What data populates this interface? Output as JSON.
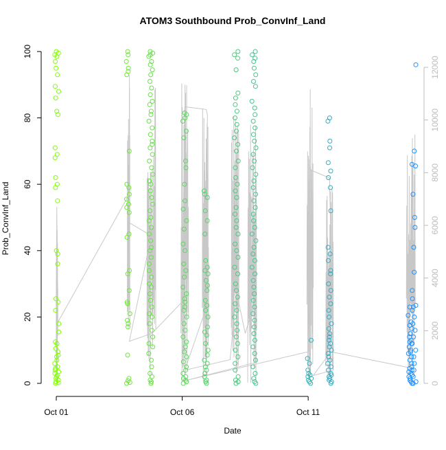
{
  "chart_data": {
    "type": "scatter",
    "title": "ATOM3 Southbound Prob_ConvInf_Land",
    "xlabel": "Date",
    "ylabel": "Prob_ConvInf_Land",
    "x_unit": "day of October (fractional)",
    "xlim": [
      0.4,
      15.6
    ],
    "ylim": [
      0,
      100
    ],
    "y2lim": [
      0,
      12000
    ],
    "x_ticks": [
      {
        "value": 1,
        "label": "Oct 01"
      },
      {
        "value": 6,
        "label": "Oct 06"
      },
      {
        "value": 11,
        "label": "Oct 11"
      }
    ],
    "y_ticks": [
      0,
      20,
      40,
      60,
      80,
      100
    ],
    "y2_ticks": [
      0,
      2000,
      4000,
      6000,
      8000,
      10000,
      12000
    ],
    "colors": {
      "axis": "#000000",
      "right_axis": "#bdbdbd",
      "line": "#c8c8c8",
      "gradient_start": "#7fff00",
      "gradient_end": "#1e90ff"
    },
    "series": [
      {
        "type": "points",
        "x": 1.02,
        "values": [
          100,
          99.5,
          99,
          98.5,
          97,
          95,
          93,
          89.5,
          88,
          86,
          82,
          81,
          71,
          69,
          68,
          62,
          60,
          59,
          55,
          40,
          39,
          36,
          25.5,
          24.5,
          22,
          18,
          15.5,
          12.5,
          12,
          10.5,
          9.5,
          8.5,
          8,
          7,
          6,
          5,
          4.5,
          4,
          3.5,
          3,
          2.5,
          2,
          1.5,
          1,
          0.5,
          0.2,
          0
        ]
      },
      {
        "type": "points",
        "x": 3.85,
        "values": [
          100,
          99,
          97,
          95,
          94,
          93,
          70,
          60,
          59,
          57,
          55.5,
          54,
          53,
          51.5,
          45,
          44,
          34,
          33,
          28,
          24.5,
          24,
          21,
          19,
          18,
          17,
          8.5,
          1.5,
          0.8,
          0.3,
          0
        ]
      },
      {
        "type": "points",
        "x": 4.75,
        "values": [
          100,
          99.5,
          99,
          98.5,
          97,
          96,
          94.5,
          93,
          91,
          89,
          87,
          85,
          84,
          82,
          81,
          79,
          77,
          75,
          73,
          72,
          71,
          69,
          67,
          65,
          63,
          61,
          60,
          58,
          56,
          54,
          52,
          50,
          49,
          47,
          45,
          43,
          41,
          40,
          38,
          36,
          34,
          32,
          30,
          29,
          27,
          25,
          23,
          21,
          20,
          18,
          16,
          14,
          12,
          11,
          9,
          7,
          5,
          3,
          2,
          1,
          0.5,
          0
        ]
      },
      {
        "type": "points",
        "x": 6.1,
        "values": [
          81.5,
          81,
          80,
          79,
          76,
          74,
          67,
          65,
          60,
          55,
          52.5,
          49,
          46.5,
          42,
          40,
          36,
          34,
          32,
          29,
          27,
          25.5,
          24.5,
          23,
          22,
          20,
          18,
          16,
          14,
          12.5,
          11,
          9.5,
          8,
          6.5,
          5,
          4,
          3,
          2,
          1.5,
          1,
          0.5,
          0
        ]
      },
      {
        "type": "points",
        "x": 6.95,
        "values": [
          58,
          57,
          56,
          52,
          49,
          45,
          37,
          35,
          34,
          33,
          31,
          29.5,
          28,
          25,
          23.5,
          22,
          20,
          17,
          15.5,
          14.5,
          12,
          10,
          8.5,
          7,
          6,
          5,
          4,
          3,
          2,
          1,
          0.5,
          0
        ]
      },
      {
        "type": "points",
        "x": 8.15,
        "values": [
          100,
          99,
          98,
          94.5,
          87.5,
          86,
          84,
          82,
          80,
          78,
          76,
          74,
          72,
          70,
          67,
          65,
          62,
          60,
          58,
          56,
          53,
          51,
          49,
          47,
          45,
          42,
          40,
          38,
          35,
          33,
          30,
          28,
          26,
          24,
          22,
          20,
          18,
          16,
          14,
          12,
          10,
          8,
          6,
          4,
          2,
          1,
          0.5,
          0
        ]
      },
      {
        "type": "points",
        "x": 8.85,
        "values": [
          100,
          99,
          98,
          97,
          95,
          93,
          91,
          89.5,
          85,
          83,
          81,
          79,
          77,
          75,
          73,
          71,
          69,
          67,
          65,
          63,
          61,
          59,
          57,
          55,
          53,
          51,
          49,
          47,
          45,
          43,
          41,
          39,
          37,
          35,
          33,
          31,
          29,
          27,
          25,
          23,
          21,
          19,
          17,
          15,
          13,
          11,
          9,
          7,
          5,
          3,
          1.5,
          0.5,
          0
        ]
      },
      {
        "type": "points",
        "x": 11.05,
        "values": [
          13,
          7.5,
          6,
          4,
          3,
          2.5,
          2,
          1.5,
          1,
          0.5,
          0
        ]
      },
      {
        "type": "points",
        "x": 11.85,
        "values": [
          80,
          79,
          73,
          71,
          66.5,
          64,
          62,
          59,
          52,
          41,
          39,
          37,
          34,
          33,
          30,
          28,
          26,
          24,
          22,
          20,
          18,
          16.5,
          15,
          14,
          13,
          12,
          11,
          10,
          9,
          8,
          7,
          6,
          5,
          4,
          3,
          2.5,
          2,
          1.5,
          1,
          0.5,
          0
        ]
      },
      {
        "type": "points",
        "x": 15.05,
        "values": [
          28,
          23,
          20.5,
          18.5,
          17.5,
          16.5,
          15,
          14,
          13,
          12.5,
          12,
          11,
          10,
          9.5,
          9,
          8,
          7,
          6,
          5,
          4.5,
          4,
          3.5,
          3,
          2.5,
          2,
          1.5,
          1,
          0.5,
          0
        ]
      },
      {
        "type": "points",
        "x": 15.2,
        "values": [
          96,
          70,
          66,
          65.5,
          57,
          50,
          47,
          41,
          33.5,
          25.5,
          23.5,
          23,
          22,
          20,
          18,
          16,
          14,
          12,
          10,
          8,
          6,
          4,
          2,
          0.5,
          0
        ]
      }
    ],
    "secondary_line": {
      "axis": "right",
      "x": [
        1.0,
        1.02,
        1.05,
        3.85,
        3.9,
        4.6,
        4.75,
        3.9,
        4.8,
        6.0,
        6.1,
        6.95,
        7.0,
        6.9,
        7.0,
        6.1,
        7.0,
        7.9,
        8.15,
        8.5,
        8.85,
        8.9,
        8.95,
        6.1,
        11.0,
        11.05,
        11.1,
        11.85,
        12.0,
        11.2,
        11.9,
        15.0,
        15.2
      ],
      "values": [
        2300,
        6700,
        2300,
        7100,
        6100,
        5700,
        5500,
        1600,
        1900,
        3100,
        10500,
        10400,
        10200,
        1000,
        3000,
        500,
        700,
        900,
        3500,
        1900,
        3000,
        1500,
        800,
        100,
        1200,
        8500,
        8100,
        7800,
        500,
        300,
        1200,
        600,
        3000
      ],
      "dense_segments": [
        {
          "x0": 1.0,
          "x1": 1.06,
          "min": 0,
          "max": 6700
        },
        {
          "x0": 3.82,
          "x1": 3.92,
          "min": 1600,
          "max": 12000
        },
        {
          "x0": 4.6,
          "x1": 4.95,
          "min": 100,
          "max": 11600
        },
        {
          "x0": 5.95,
          "x1": 6.25,
          "min": 0,
          "max": 11800
        },
        {
          "x0": 6.8,
          "x1": 7.05,
          "min": 0,
          "max": 10500
        },
        {
          "x0": 7.95,
          "x1": 8.25,
          "min": 0,
          "max": 10200
        },
        {
          "x0": 8.6,
          "x1": 8.95,
          "min": 0,
          "max": 10300
        },
        {
          "x0": 10.95,
          "x1": 11.2,
          "min": 0,
          "max": 11200
        },
        {
          "x0": 11.7,
          "x1": 12.0,
          "min": 0,
          "max": 7800
        },
        {
          "x0": 14.9,
          "x1": 15.25,
          "min": 0,
          "max": 9500
        }
      ]
    }
  }
}
